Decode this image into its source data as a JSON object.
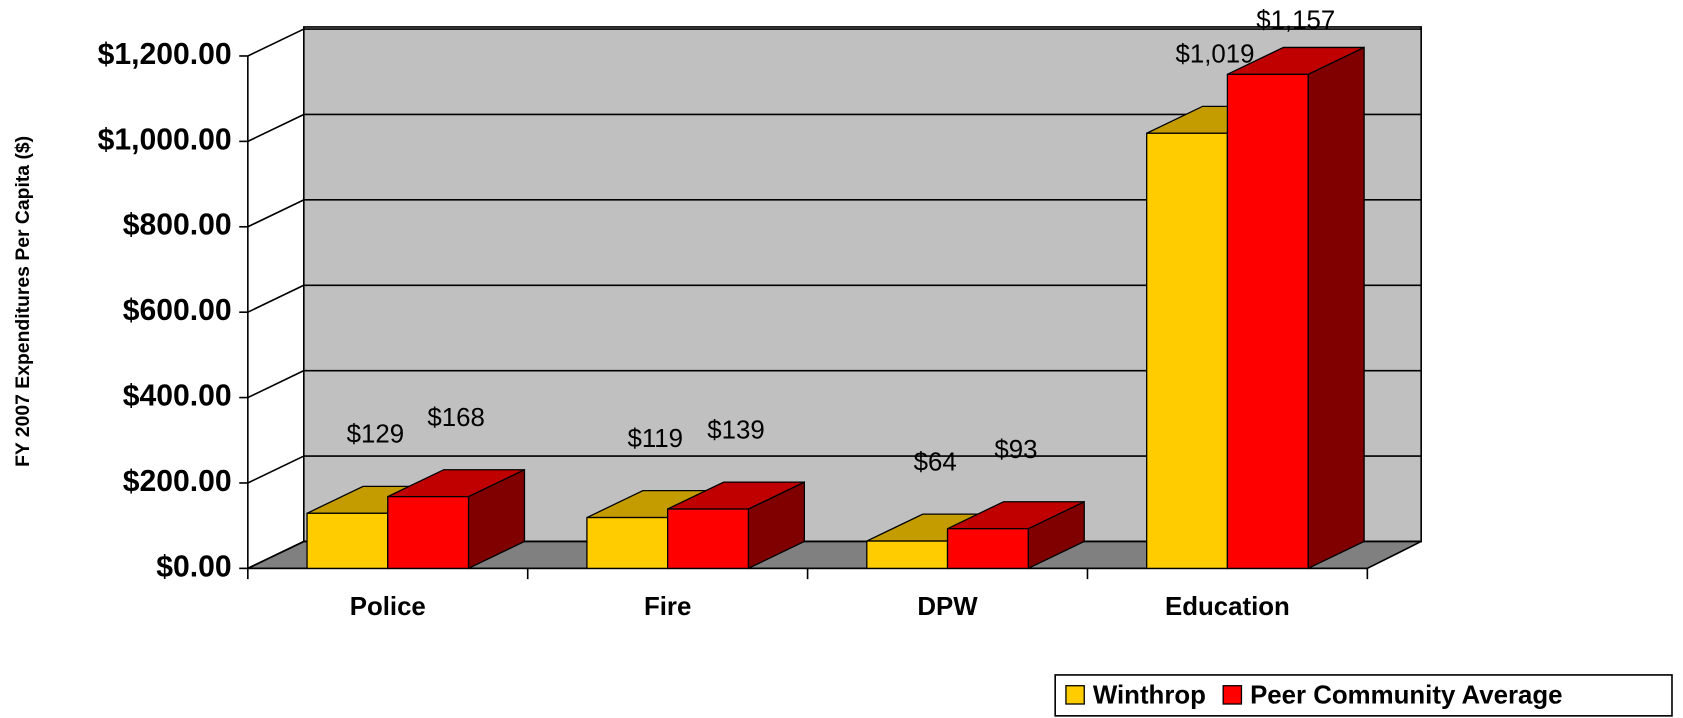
{
  "chart_data": {
    "type": "bar3d",
    "y_axis_label": "FY 2007 Expenditures Per Capita ($)",
    "categories": [
      "Police",
      "Fire",
      "DPW",
      "Education"
    ],
    "series": [
      {
        "name": "Winthrop",
        "color": "#ffcc00",
        "top_color": "#c49c00",
        "side_color": "#806600",
        "values": [
          129,
          119,
          64,
          1019
        ],
        "value_labels": [
          "$129",
          "$119",
          "$64",
          "$1,019"
        ]
      },
      {
        "name": "Peer Community Average",
        "color": "#ff0000",
        "top_color": "#c00000",
        "side_color": "#800000",
        "values": [
          168,
          139,
          93,
          1157
        ],
        "value_labels": [
          "$168",
          "$139",
          "$93",
          "$1,157"
        ]
      }
    ],
    "ylim": [
      0,
      1200
    ],
    "yticks": [
      {
        "value": 0,
        "label": "$0.00"
      },
      {
        "value": 200,
        "label": "$200.00"
      },
      {
        "value": 400,
        "label": "$400.00"
      },
      {
        "value": 600,
        "label": "$600.00"
      },
      {
        "value": 800,
        "label": "$800.00"
      },
      {
        "value": 1000,
        "label": "$1,000.00"
      },
      {
        "value": 1200,
        "label": "$1,200.00"
      }
    ],
    "grid": true,
    "legend": "bottom-right"
  }
}
